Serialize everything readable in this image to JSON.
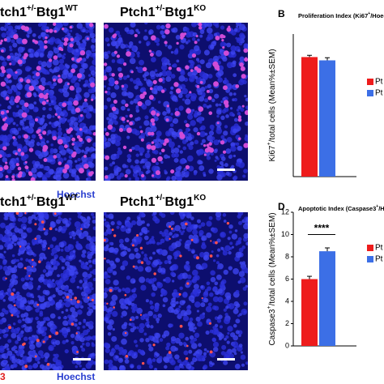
{
  "panels": [
    {
      "label": {
        "base": "tch1",
        "sup1": "+/-",
        "mid": "Btg1",
        "sup2": "WT"
      }
    },
    {
      "label": {
        "base": "Ptch1",
        "sup1": "+/-",
        "mid": "Btg1",
        "sup2": "KO"
      }
    },
    {
      "label": {
        "base": "tch1",
        "sup1": "+/-",
        "mid": "Btg1",
        "sup2": "WT"
      }
    },
    {
      "label": {
        "base": "Ptch1",
        "sup1": "+/-",
        "mid": "Btg1",
        "sup2": "KO"
      }
    }
  ],
  "stains": {
    "top": "Hoechst",
    "bottom": "Hoechst",
    "bottom_red": "3"
  },
  "chart_data": [
    {
      "type": "bar",
      "panel": "B",
      "title": {
        "base": "Proliferation Index (Ki67",
        "sup": "+",
        "rest": "/Hoechst)"
      },
      "ylabel": {
        "base": "Ki67",
        "sup": "+",
        "rest": "/total cells (Mean%±SEM)"
      },
      "ylim": [
        0,
        65
      ],
      "series": [
        {
          "name": "Pt",
          "color": "#ee1c1c",
          "values": [
            54.5
          ],
          "errors": [
            0.8
          ]
        },
        {
          "name": "Pt",
          "color": "#3c6fe6",
          "values": [
            53
          ],
          "errors": [
            1.2
          ]
        }
      ]
    },
    {
      "type": "bar",
      "panel": "D",
      "title": {
        "base": "Apoptotic Index (Caspase3",
        "sup": "+",
        "rest": "/Hoechst)"
      },
      "ylabel": {
        "base": "Caspase3",
        "sup": "+",
        "rest": "/total cells (Mean%±SEM)"
      },
      "ylim": [
        0,
        12
      ],
      "yticks": [
        0,
        2,
        4,
        6,
        8,
        10,
        12
      ],
      "annotation": "****",
      "series": [
        {
          "name": "Pt",
          "color": "#ee1c1c",
          "values": [
            6.0
          ],
          "errors": [
            0.25
          ]
        },
        {
          "name": "Pt",
          "color": "#3c6fe6",
          "values": [
            8.5
          ],
          "errors": [
            0.3
          ]
        }
      ]
    }
  ]
}
